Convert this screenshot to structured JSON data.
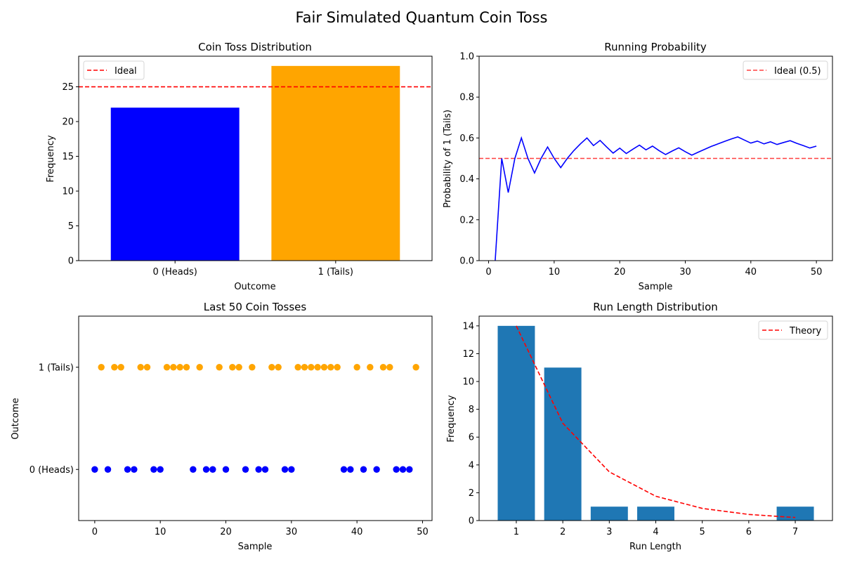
{
  "figure": {
    "title": "Fair Simulated Quantum Coin Toss"
  },
  "chart_data": [
    {
      "type": "bar",
      "title": "Coin Toss Distribution",
      "xlabel": "Outcome",
      "ylabel": "Frequency",
      "categories": [
        "0 (Heads)",
        "1 (Tails)"
      ],
      "values": [
        22,
        28
      ],
      "bar_colors": [
        "#0000ff",
        "#ffa500"
      ],
      "ylim": [
        0,
        29.4
      ],
      "yticks": [
        0,
        5,
        10,
        15,
        20,
        25
      ],
      "reference_line": {
        "y": 25,
        "label": "Ideal",
        "color": "#ff0000",
        "style": "dashed"
      },
      "legend": {
        "position": "top-left",
        "entries": [
          "Ideal"
        ]
      },
      "grid": false
    },
    {
      "type": "line",
      "title": "Running Probability",
      "xlabel": "Sample",
      "ylabel": "Probability of 1 (Tails)",
      "xlim": [
        -1.45,
        52.45
      ],
      "ylim": [
        0,
        1
      ],
      "xticks": [
        0,
        10,
        20,
        30,
        40,
        50
      ],
      "yticks": [
        0.0,
        0.2,
        0.4,
        0.6,
        0.8,
        1.0
      ],
      "series": [
        {
          "color": "#0000ff",
          "x": [
            1,
            2,
            3,
            4,
            5,
            6,
            7,
            8,
            9,
            10,
            11,
            12,
            13,
            14,
            15,
            16,
            17,
            18,
            19,
            20,
            21,
            22,
            23,
            24,
            25,
            26,
            27,
            28,
            29,
            30,
            31,
            32,
            33,
            34,
            35,
            36,
            37,
            38,
            39,
            40,
            41,
            42,
            43,
            44,
            45,
            46,
            47,
            48,
            49,
            50
          ],
          "y": [
            0.0,
            0.5,
            0.333,
            0.5,
            0.6,
            0.5,
            0.429,
            0.5,
            0.556,
            0.5,
            0.455,
            0.5,
            0.538,
            0.571,
            0.6,
            0.563,
            0.588,
            0.556,
            0.526,
            0.55,
            0.524,
            0.545,
            0.565,
            0.542,
            0.56,
            0.538,
            0.519,
            0.536,
            0.552,
            0.533,
            0.516,
            0.531,
            0.545,
            0.559,
            0.571,
            0.583,
            0.595,
            0.605,
            0.59,
            0.575,
            0.585,
            0.571,
            0.581,
            0.568,
            0.578,
            0.587,
            0.574,
            0.563,
            0.551,
            0.56
          ]
        }
      ],
      "reference_line": {
        "y": 0.5,
        "label": "Ideal (0.5)",
        "color": "#ff0000",
        "style": "dashed"
      },
      "legend": {
        "position": "top-right",
        "entries": [
          "Ideal (0.5)"
        ]
      },
      "grid": false
    },
    {
      "type": "scatter",
      "title": "Last 50 Coin Tosses",
      "xlabel": "Sample",
      "ylabel": "Outcome",
      "xlim": [
        -2.45,
        51.45
      ],
      "ylim": [
        -0.5,
        1.5
      ],
      "xticks": [
        0,
        10,
        20,
        30,
        40,
        50
      ],
      "ytick_labels": [
        {
          "value": 0,
          "label": "0 (Heads)"
        },
        {
          "value": 1,
          "label": "1 (Tails)"
        }
      ],
      "outcomes": [
        0,
        1,
        0,
        1,
        1,
        0,
        0,
        1,
        1,
        0,
        0,
        1,
        1,
        1,
        1,
        0,
        1,
        0,
        0,
        1,
        0,
        1,
        1,
        0,
        1,
        0,
        0,
        1,
        1,
        0,
        0,
        1,
        1,
        1,
        1,
        1,
        1,
        1,
        0,
        0,
        1,
        0,
        1,
        0,
        1,
        1,
        0,
        0,
        0,
        1
      ],
      "colors": {
        "0": "#0000ff",
        "1": "#ffa500"
      },
      "grid": false
    },
    {
      "type": "bar",
      "title": "Run Length Distribution",
      "xlabel": "Run Length",
      "ylabel": "Frequency",
      "categories": [
        1,
        2,
        3,
        4,
        7
      ],
      "values": [
        14,
        11,
        1,
        1,
        1
      ],
      "bar_color": "#1f77b4",
      "xlim": [
        0.2,
        7.8
      ],
      "ylim": [
        0,
        14.7
      ],
      "xticks": [
        1,
        2,
        3,
        4,
        5,
        6,
        7
      ],
      "yticks": [
        0,
        2,
        4,
        6,
        8,
        10,
        12,
        14
      ],
      "theory": {
        "label": "Theory",
        "color": "#ff0000",
        "style": "dashed",
        "x": [
          1,
          2,
          3,
          4,
          5,
          6,
          7
        ],
        "y": [
          14,
          7,
          3.5,
          1.75,
          0.875,
          0.4375,
          0.21875
        ]
      },
      "legend": {
        "position": "top-right",
        "entries": [
          "Theory"
        ]
      },
      "grid": false
    }
  ]
}
